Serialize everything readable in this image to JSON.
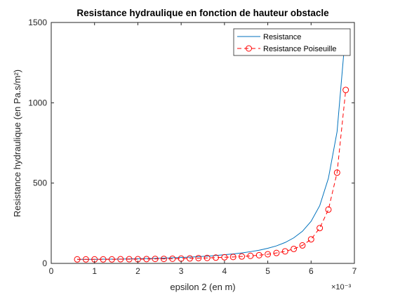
{
  "chart_data": {
    "type": "line",
    "title": "Resistance hydraulique en fonction de hauteur obstacle",
    "xlabel": "epsilon 2 (en m)",
    "ylabel": "Resistance hydraulique (en Pa.s/m²)",
    "x_exponent_label": "×10⁻³",
    "x_tick_labels": [
      "0",
      "1",
      "2",
      "3",
      "4",
      "5",
      "6",
      "7"
    ],
    "x_tick_values": [
      0,
      0.001,
      0.002,
      0.003,
      0.004,
      0.005,
      0.006,
      0.007
    ],
    "y_tick_labels": [
      "0",
      "500",
      "1000",
      "1500"
    ],
    "y_tick_values": [
      0,
      500,
      1000,
      1500
    ],
    "xlim": [
      0,
      0.007
    ],
    "ylim": [
      0,
      1500
    ],
    "grid": false,
    "legend_position": "top-right",
    "series": [
      {
        "name": "Resistance",
        "color": "#0072BD",
        "style": "solid",
        "marker": "none",
        "x": [
          0.0006,
          0.0008,
          0.001,
          0.0012,
          0.0014,
          0.0016,
          0.0018,
          0.002,
          0.0022,
          0.0024,
          0.0026,
          0.0028,
          0.003,
          0.0032,
          0.0034,
          0.0036,
          0.0038,
          0.004,
          0.0042,
          0.0044,
          0.0046,
          0.0048,
          0.005,
          0.0052,
          0.0054,
          0.0056,
          0.0058,
          0.006,
          0.0062,
          0.0064,
          0.0066,
          0.0068
        ],
        "y": [
          25,
          25,
          25,
          26,
          26,
          27,
          28,
          29,
          30,
          31,
          33,
          35,
          37,
          39,
          42,
          45,
          49,
          54,
          59,
          65,
          73,
          82,
          94,
          109,
          130,
          159,
          200,
          262,
          360,
          530,
          820,
          1450
        ]
      },
      {
        "name": "Resistance Poiseuille",
        "color": "#FF0000",
        "style": "dashed",
        "marker": "circle",
        "x": [
          0.0006,
          0.0008,
          0.001,
          0.0012,
          0.0014,
          0.0016,
          0.0018,
          0.002,
          0.0022,
          0.0024,
          0.0026,
          0.0028,
          0.003,
          0.0032,
          0.0034,
          0.0036,
          0.0038,
          0.004,
          0.0042,
          0.0044,
          0.0046,
          0.0048,
          0.005,
          0.0052,
          0.0054,
          0.0056,
          0.0058,
          0.006,
          0.0062,
          0.0064,
          0.0066,
          0.0068
        ],
        "y": [
          25,
          25,
          25,
          25,
          25,
          26,
          26,
          26,
          27,
          28,
          28,
          29,
          30,
          31,
          33,
          34,
          36,
          38,
          40,
          43,
          47,
          51,
          57,
          65,
          75,
          90,
          112,
          150,
          220,
          335,
          565,
          1080
        ]
      }
    ]
  }
}
